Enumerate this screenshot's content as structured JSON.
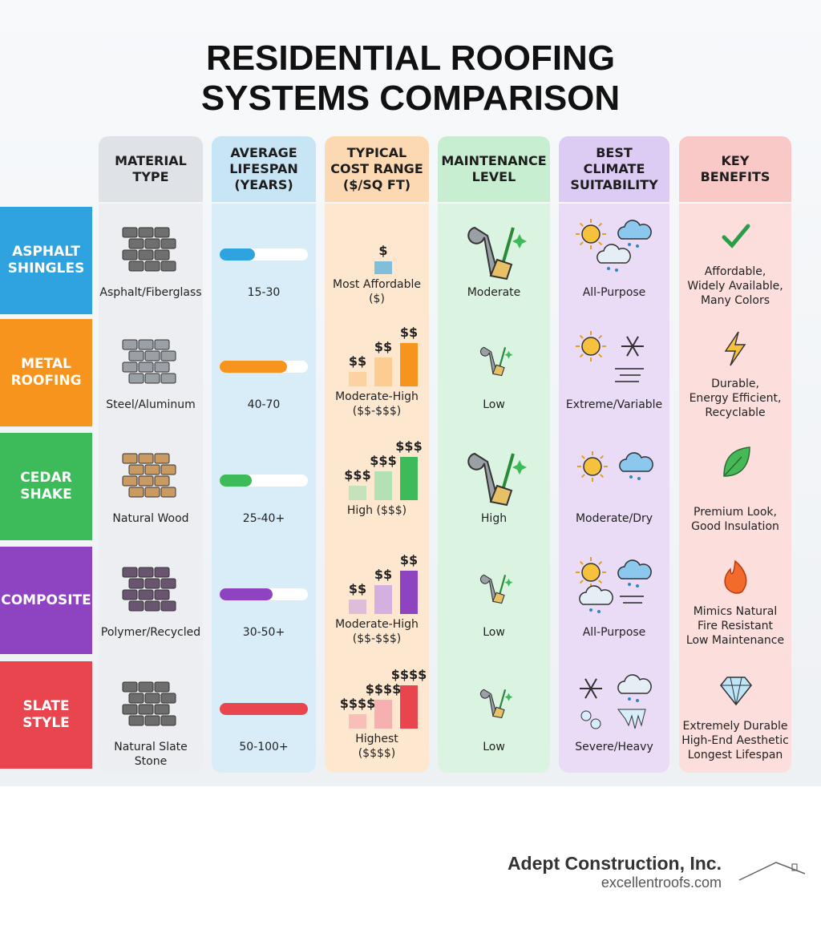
{
  "title": [
    "RESIDENTIAL ROOFING",
    "SYSTEMS COMPARISON"
  ],
  "columns": [
    [
      "MATERIAL",
      "TYPE"
    ],
    [
      "AVERAGE",
      "LIFESPAN",
      "(YEARS)"
    ],
    [
      "TYPICAL",
      "COST RANGE",
      "($/SQ FT)"
    ],
    [
      "MAINTENANCE",
      "LEVEL"
    ],
    [
      "BEST",
      "CLIMATE",
      "SUITABILITY"
    ],
    [
      "KEY",
      "BENEFITS"
    ]
  ],
  "rows": [
    {
      "label": [
        "ASPHALT",
        "SHINGLES"
      ],
      "material": "Asphalt/Fiberglass",
      "lifespan": "15-30",
      "cost_tiers": [
        "$"
      ],
      "cost": [
        "Most Affordable",
        "($)"
      ],
      "maintenance": "Moderate",
      "climate": "All-Purpose",
      "benefits": [
        "Affordable,",
        "Widely Available,",
        "Many Colors"
      ]
    },
    {
      "label": [
        "METAL",
        "ROOFING"
      ],
      "material": "Steel/Aluminum",
      "lifespan": "40-70",
      "cost_tiers": [
        "$$",
        "$$",
        "$$"
      ],
      "cost": [
        "Moderate-High",
        "($$-$$$)"
      ],
      "maintenance": "Low",
      "climate": "Extreme/Variable",
      "benefits": [
        "Durable,",
        "Energy Efficient,",
        "Recyclable"
      ]
    },
    {
      "label": [
        "CEDAR",
        "SHAKE"
      ],
      "material": "Natural Wood",
      "lifespan": "25-40+",
      "cost_tiers": [
        "$$$",
        "$$$",
        "$$$"
      ],
      "cost": [
        "High ($$$)"
      ],
      "maintenance": "High",
      "climate": "Moderate/Dry",
      "benefits": [
        "Premium Look,",
        "Good Insulation"
      ]
    },
    {
      "label": [
        "COMPOSITE"
      ],
      "material": "Polymer/Recycled",
      "lifespan": "30-50+",
      "cost_tiers": [
        "$$",
        "$$",
        "$$"
      ],
      "cost": [
        "Moderate-High",
        "($$-$$$)"
      ],
      "maintenance": "Low",
      "climate": "All-Purpose",
      "benefits": [
        "Mimics Natural",
        "Fire Resistant",
        "Low Maintenance"
      ]
    },
    {
      "label": [
        "SLATE",
        "STYLE"
      ],
      "material": "Natural Slate Stone",
      "lifespan": "50-100+",
      "cost_tiers": [
        "$$$$",
        "$$$$",
        "$$$$"
      ],
      "cost": [
        "Highest",
        "($$$$)"
      ],
      "maintenance": "Low",
      "climate": "Severe/Heavy",
      "benefits": [
        "Extremely Durable",
        "High-End Aesthetic",
        "Longest Lifespan"
      ]
    }
  ],
  "footer": {
    "company": "Adept Construction, Inc.",
    "website": "excellentroofs.com"
  }
}
